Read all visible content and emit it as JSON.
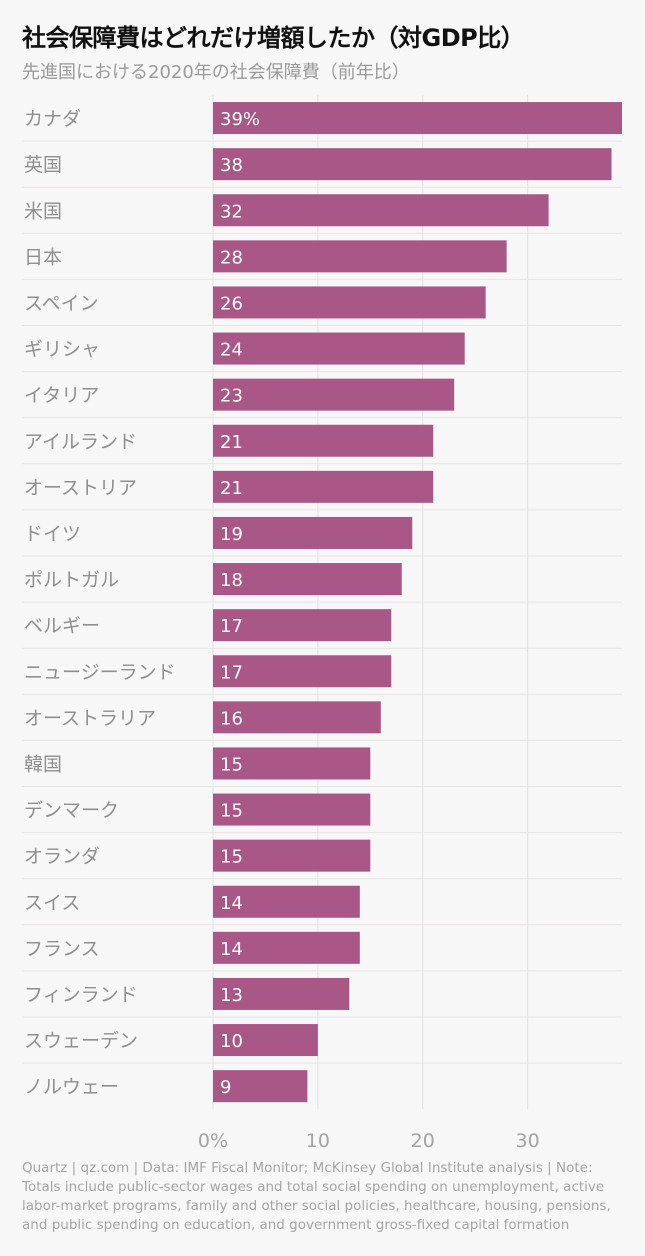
{
  "chart_data": {
    "type": "bar",
    "orientation": "horizontal",
    "title": "社会保障費はどれだけ増額したか（対GDP比）",
    "subtitle": "先進国における2020年の社会保障費（前年比）",
    "categories": [
      "カナダ",
      "英国",
      "米国",
      "日本",
      "スペイン",
      "ギリシャ",
      "イタリア",
      "アイルランド",
      "オーストリア",
      "ドイツ",
      "ポルトガル",
      "ベルギー",
      "ニュージーランド",
      "オーストラリア",
      "韓国",
      "デンマーク",
      "オランダ",
      "スイス",
      "フランス",
      "フィンランド",
      "スウェーデン",
      "ノルウェー"
    ],
    "values": [
      39,
      38,
      32,
      28,
      26,
      24,
      23,
      21,
      21,
      19,
      18,
      17,
      17,
      16,
      15,
      15,
      15,
      14,
      14,
      13,
      10,
      9
    ],
    "value_labels": [
      "39%",
      "38",
      "32",
      "28",
      "26",
      "24",
      "23",
      "21",
      "21",
      "19",
      "18",
      "17",
      "17",
      "16",
      "15",
      "15",
      "15",
      "14",
      "14",
      "13",
      "10",
      "9"
    ],
    "x_ticks": [
      0,
      10,
      20,
      30
    ],
    "x_tick_labels": [
      "0%",
      "10",
      "20",
      "30"
    ],
    "xlim": [
      0,
      39
    ],
    "grid": true,
    "bar_color": "#a85786"
  },
  "footnote": "Quartz | qz.com | Data: IMF Fiscal Monitor; McKinsey Global Institute analysis | Note: Totals include public-sector wages and total social spending on unemployment, active labor-market programs, family and other social policies, healthcare, housing, pensions, and public spending on education, and government gross-fixed capital formation"
}
